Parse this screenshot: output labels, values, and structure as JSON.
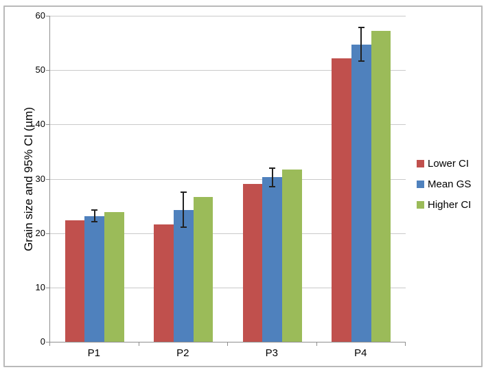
{
  "window": {
    "background": "#ffffff",
    "frame_border_color": "#b9b9b9"
  },
  "colors": {
    "axis": "#8e8e8e",
    "gridline": "#c9c9c9",
    "text": "#000000",
    "error_bar": "#212121"
  },
  "chart_data": {
    "type": "bar",
    "title": "",
    "xlabel": "",
    "ylabel": "Grain size and 95% CI (µm)",
    "categories": [
      "P1",
      "P2",
      "P3",
      "P4"
    ],
    "series": [
      {
        "name": "Lower CI",
        "color": "#C0504D",
        "values": [
          22.4,
          21.6,
          29.0,
          52.2
        ]
      },
      {
        "name": "Mean GS",
        "color": "#4F81BD",
        "values": [
          23.1,
          24.2,
          30.3,
          54.7
        ],
        "error_bars": {
          "low": [
            22.1,
            21.1,
            28.6,
            51.7
          ],
          "high": [
            24.3,
            27.5,
            32.0,
            57.9
          ],
          "color": "#212121"
        }
      },
      {
        "name": "Higher CI",
        "color": "#9BBB59",
        "values": [
          23.9,
          26.7,
          31.7,
          57.2
        ]
      }
    ],
    "ylim": [
      0,
      60
    ],
    "ytick_interval": 10,
    "yticks": [
      0,
      10,
      20,
      30,
      40,
      50,
      60
    ],
    "grid": true,
    "legend_position": "right"
  }
}
